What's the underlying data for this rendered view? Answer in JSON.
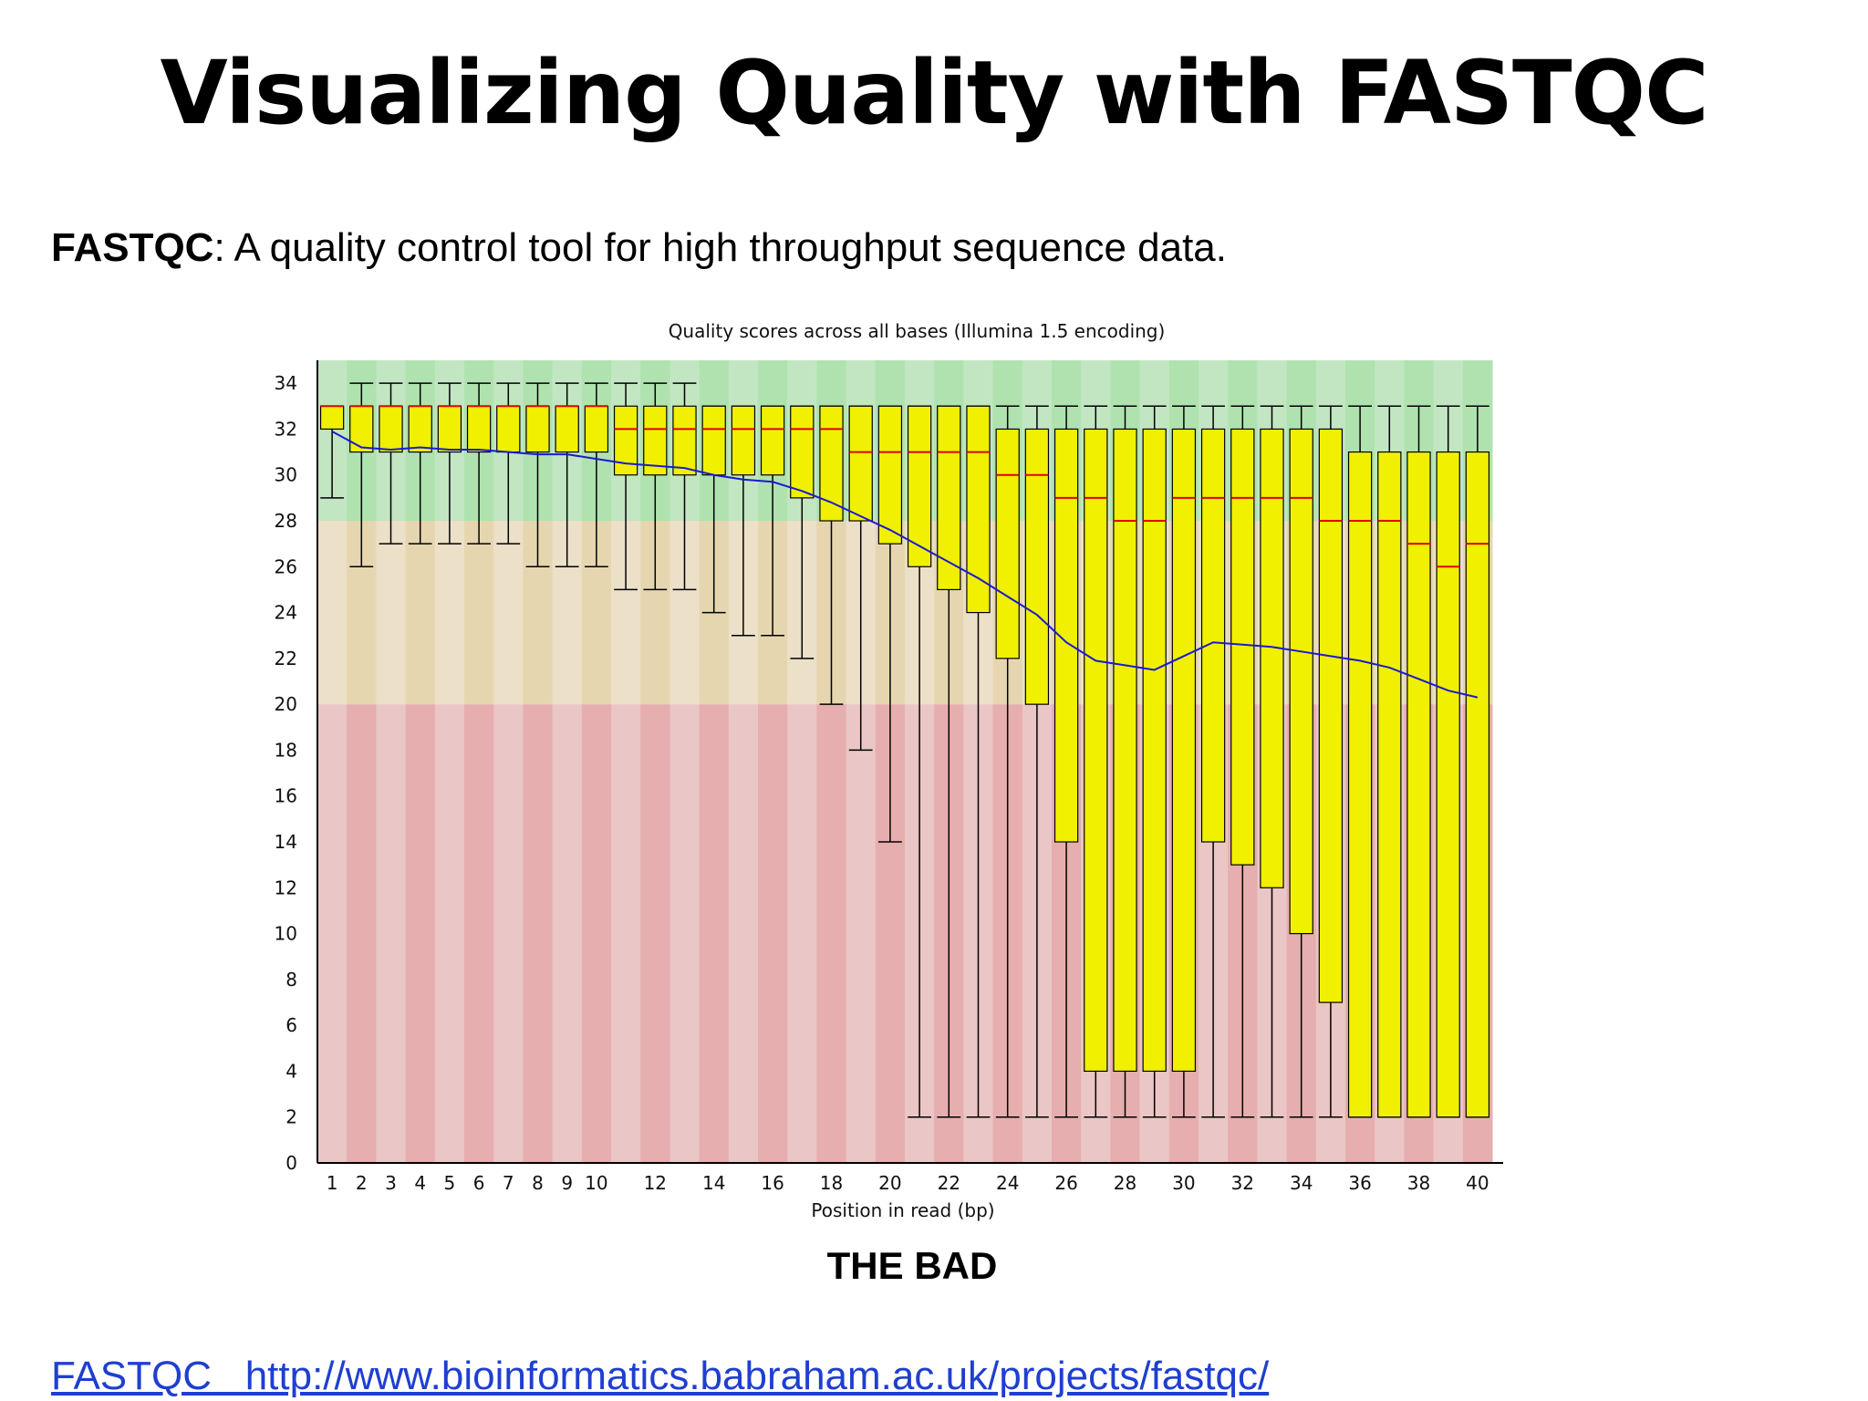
{
  "slide": {
    "title": "Visualizing Quality with FASTQC",
    "subtitle_bold": "FASTQC",
    "subtitle_rest": ": A quality control tool for high throughput sequence data.",
    "caption": "THE BAD",
    "footer_link": "FASTQC   http://www.bioinformatics.babraham.ac.uk/projects/fastqc/"
  },
  "colors": {
    "zone_good": "#c2e6c2",
    "zone_good_alt": "#b0e2b0",
    "zone_ok": "#ece0c8",
    "zone_ok_alt": "#e6d6b0",
    "zone_bad": "#eac6c6",
    "zone_bad_alt": "#e6aeae",
    "box_fill": "#f0f000",
    "median": "#e00000",
    "mean_line": "#1a1ad0",
    "whisker": "#000000"
  },
  "chart_data": {
    "type": "box",
    "title": "Quality scores across all bases (Illumina 1.5 encoding)",
    "xlabel": "Position in read (bp)",
    "ylabel": "",
    "ylim": [
      0,
      35
    ],
    "yticks": [
      0,
      2,
      4,
      6,
      8,
      10,
      12,
      14,
      16,
      18,
      20,
      22,
      24,
      26,
      28,
      30,
      32,
      34
    ],
    "xtick_labels": [
      "1",
      "2",
      "3",
      "4",
      "5",
      "6",
      "7",
      "8",
      "9",
      "10",
      "12",
      "14",
      "16",
      "18",
      "20",
      "22",
      "24",
      "26",
      "28",
      "30",
      "32",
      "34",
      "36",
      "38",
      "40"
    ],
    "zones": [
      {
        "from": 28,
        "to": 35,
        "quality": "good"
      },
      {
        "from": 20,
        "to": 28,
        "quality": "reasonable"
      },
      {
        "from": 0,
        "to": 20,
        "quality": "poor"
      }
    ],
    "positions": [
      1,
      2,
      3,
      4,
      5,
      6,
      7,
      8,
      9,
      10,
      11,
      12,
      13,
      14,
      15,
      16,
      17,
      18,
      19,
      20,
      21,
      22,
      23,
      24,
      25,
      26,
      27,
      28,
      29,
      30,
      31,
      32,
      33,
      34,
      35,
      36,
      37,
      38,
      39,
      40
    ],
    "whisker_low": [
      29,
      26,
      27,
      27,
      27,
      27,
      27,
      26,
      26,
      26,
      25,
      25,
      25,
      24,
      23,
      23,
      22,
      20,
      18,
      14,
      2,
      2,
      2,
      2,
      2,
      2,
      2,
      2,
      2,
      2,
      2,
      2,
      2,
      2,
      2,
      2,
      2,
      2,
      2,
      2
    ],
    "q1": [
      32,
      31,
      31,
      31,
      31,
      31,
      31,
      31,
      31,
      31,
      30,
      30,
      30,
      30,
      30,
      30,
      29,
      28,
      28,
      27,
      26,
      25,
      24,
      22,
      20,
      14,
      4,
      4,
      4,
      4,
      14,
      13,
      12,
      10,
      7,
      2,
      2,
      2,
      2,
      2
    ],
    "median": [
      33,
      33,
      33,
      33,
      33,
      33,
      33,
      33,
      33,
      33,
      32,
      32,
      32,
      32,
      32,
      32,
      32,
      32,
      31,
      31,
      31,
      31,
      31,
      30,
      30,
      29,
      29,
      28,
      28,
      29,
      29,
      29,
      29,
      29,
      28,
      28,
      28,
      27,
      26,
      27
    ],
    "q3": [
      33,
      33,
      33,
      33,
      33,
      33,
      33,
      33,
      33,
      33,
      33,
      33,
      33,
      33,
      33,
      33,
      33,
      33,
      33,
      33,
      33,
      33,
      33,
      32,
      32,
      32,
      32,
      32,
      32,
      32,
      32,
      32,
      32,
      32,
      32,
      31,
      31,
      31,
      31,
      31
    ],
    "whisker_high": [
      33,
      34,
      34,
      34,
      34,
      34,
      34,
      34,
      34,
      34,
      34,
      34,
      34,
      33,
      33,
      33,
      33,
      33,
      33,
      33,
      33,
      33,
      33,
      33,
      33,
      33,
      33,
      33,
      33,
      33,
      33,
      33,
      33,
      33,
      33,
      33,
      33,
      33,
      33,
      33
    ],
    "mean": [
      31.9,
      31.2,
      31.1,
      31.2,
      31.1,
      31.1,
      31.0,
      30.9,
      30.9,
      30.7,
      30.5,
      30.4,
      30.3,
      30.0,
      29.8,
      29.7,
      29.3,
      28.8,
      28.2,
      27.6,
      26.9,
      26.2,
      25.5,
      24.7,
      23.9,
      22.7,
      21.9,
      21.7,
      21.5,
      22.1,
      22.7,
      22.6,
      22.5,
      22.3,
      22.1,
      21.9,
      21.6,
      21.1,
      20.6,
      20.3
    ]
  }
}
